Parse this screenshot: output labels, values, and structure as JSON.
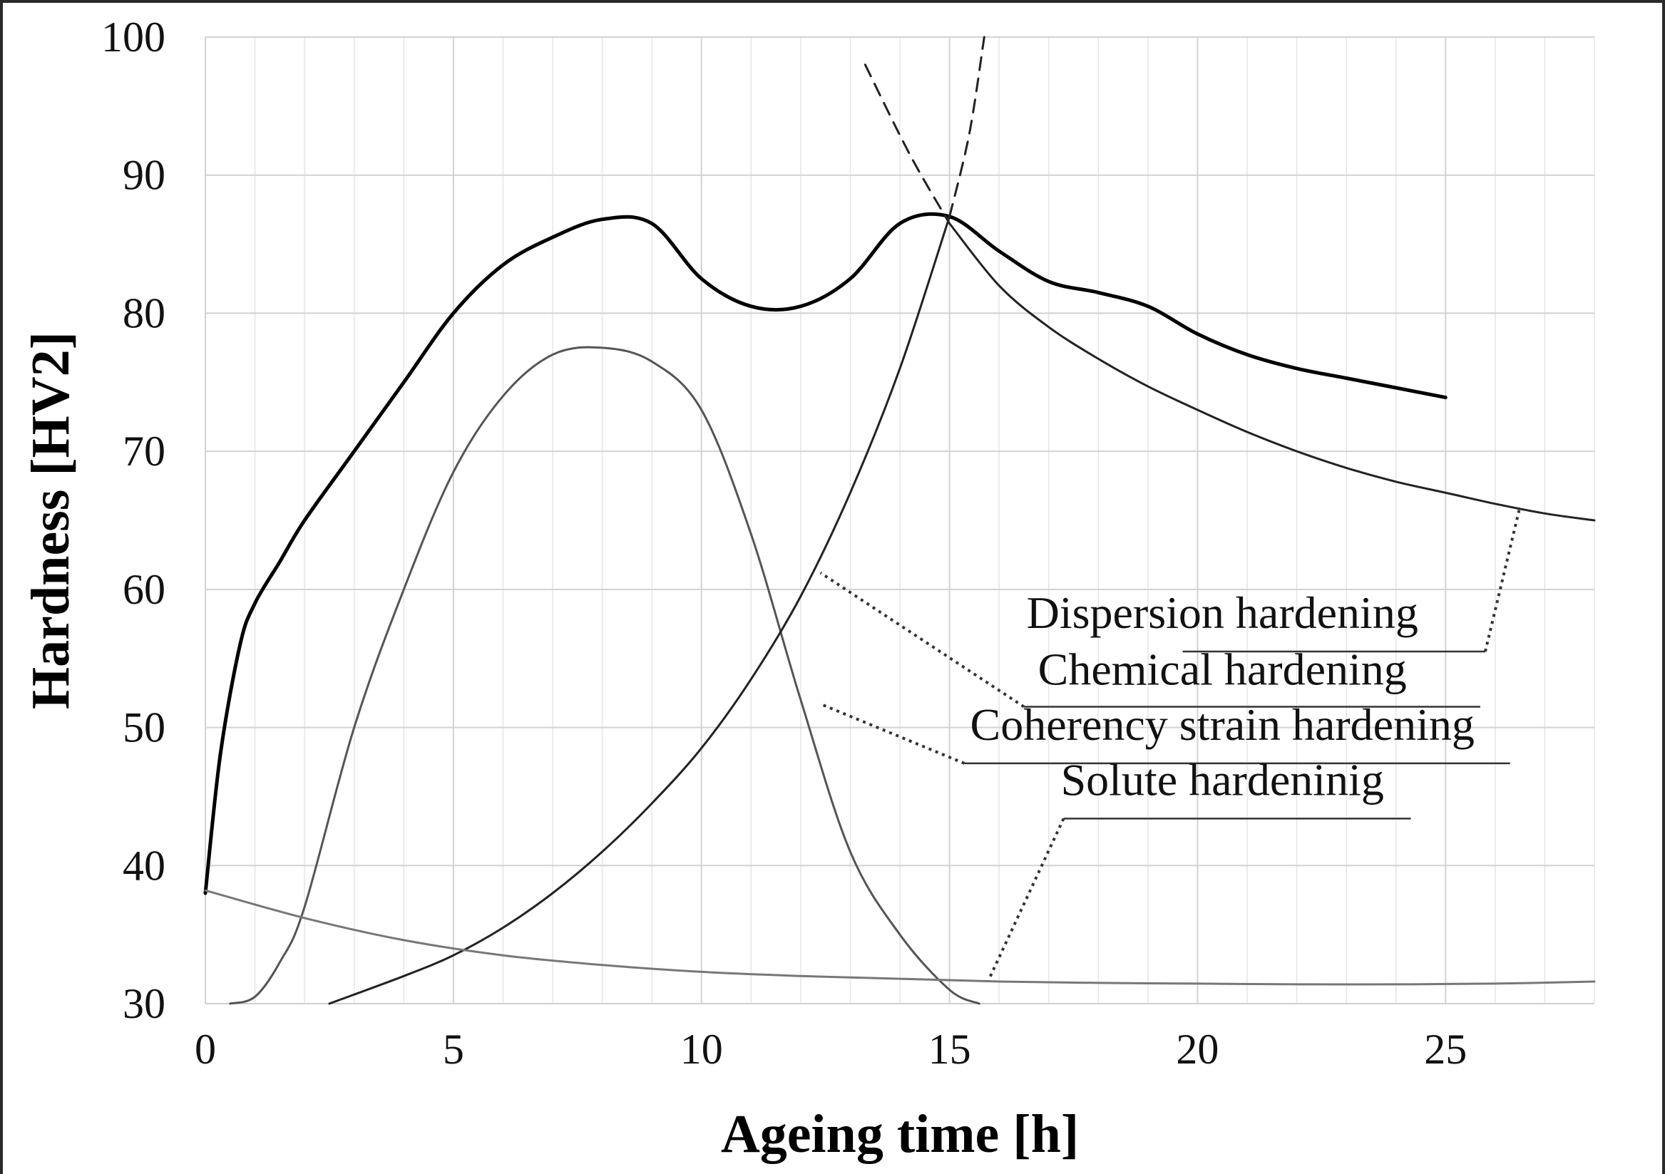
{
  "chart_data": {
    "type": "line",
    "xlabel": "Ageing time  [h]",
    "ylabel": "Hardness  [HV2]",
    "xlim": [
      0,
      28
    ],
    "ylim": [
      30,
      100
    ],
    "x_ticks": [
      0,
      5,
      10,
      15,
      20,
      25
    ],
    "y_ticks": [
      30,
      40,
      50,
      60,
      70,
      80,
      90,
      100
    ],
    "grid": true,
    "minor_grid": true,
    "series": [
      {
        "key": "total",
        "color": "#000000",
        "style": "solid-bold",
        "x": [
          0,
          0.3,
          0.7,
          1,
          1.5,
          2,
          3,
          4,
          5,
          6,
          7,
          8,
          9,
          10,
          11,
          12,
          13,
          14,
          15,
          16,
          17,
          18,
          19,
          20,
          21,
          22,
          23,
          24,
          25
        ],
        "y": [
          38,
          48,
          56,
          59,
          62,
          65,
          70,
          75,
          80,
          83.5,
          85.5,
          86.8,
          86.5,
          82.5,
          80.5,
          80.5,
          82.5,
          86.5,
          87,
          84.5,
          82.3,
          81.5,
          80.5,
          78.5,
          77,
          76,
          75.3,
          74.6,
          73.9
        ]
      },
      {
        "key": "coherency",
        "name": "Coherency  strain hardening",
        "color": "#555555",
        "style": "solid",
        "x": [
          0.5,
          1,
          1.5,
          2,
          3,
          4,
          5,
          6,
          7,
          8,
          9,
          10,
          11,
          12,
          13,
          14,
          15,
          15.6
        ],
        "y": [
          30,
          30.5,
          33,
          37,
          50,
          60,
          68.5,
          74,
          77,
          77.5,
          76.5,
          73,
          64,
          52,
          41,
          35,
          31,
          30
        ]
      },
      {
        "key": "chemical",
        "name": "Chemical hardening",
        "color": "#222222",
        "style": "solid",
        "x": [
          2.5,
          4,
          5,
          6,
          7,
          8,
          9,
          10,
          11,
          12,
          13,
          14,
          15
        ],
        "y": [
          30,
          32,
          33.5,
          35.5,
          38,
          41,
          44.5,
          48.5,
          53.5,
          59.5,
          67,
          76,
          87
        ]
      },
      {
        "key": "chemical_ext",
        "color": "#222222",
        "style": "dashed",
        "x": [
          15,
          15.4,
          15.7
        ],
        "y": [
          87,
          93,
          100
        ]
      },
      {
        "key": "dispersion",
        "name": "Dispersion hardening",
        "color": "#222222",
        "style": "solid",
        "x": [
          15,
          16,
          17,
          18,
          19,
          20,
          21,
          22,
          23,
          24,
          25,
          26,
          27,
          28
        ],
        "y": [
          86.5,
          82,
          79,
          76.7,
          74.7,
          73,
          71.4,
          70,
          68.8,
          67.8,
          67,
          66.2,
          65.5,
          65
        ]
      },
      {
        "key": "dispersion_ext",
        "color": "#222222",
        "style": "dashed",
        "x": [
          13.3,
          14.2,
          15
        ],
        "y": [
          98,
          91.5,
          86.5
        ]
      },
      {
        "key": "solute",
        "name": "Solute hardeninig",
        "color": "#777777",
        "style": "solid",
        "x": [
          0,
          2,
          4,
          6,
          8,
          10,
          12,
          14,
          16,
          18,
          20,
          22,
          24,
          26,
          28
        ],
        "y": [
          38.2,
          36.2,
          34.6,
          33.5,
          32.8,
          32.3,
          32,
          31.8,
          31.6,
          31.5,
          31.45,
          31.4,
          31.4,
          31.45,
          31.6
        ]
      }
    ],
    "annotations": [
      {
        "key": "dispersion",
        "text": "Dispersion hardening",
        "label_x": 20.5,
        "label_y": 57.2,
        "line_x": [
          19.7,
          25.8,
          26.5
        ],
        "line_y": [
          55.5,
          55.5,
          66
        ]
      },
      {
        "key": "chemical",
        "text": "Chemical hardening",
        "label_x": 20.5,
        "label_y": 53.1,
        "line_x": [
          25.7,
          16.5,
          12.4
        ],
        "line_y": [
          51.5,
          51.5,
          61.2
        ]
      },
      {
        "key": "coherency",
        "text": "Coherency  strain hardening",
        "label_x": 20.5,
        "label_y": 49.1,
        "line_x": [
          26.3,
          15.3,
          12.4
        ],
        "line_y": [
          47.4,
          47.4,
          51.7
        ]
      },
      {
        "key": "solute",
        "text": "Solute hardeninig",
        "label_x": 20.5,
        "label_y": 45.1,
        "line_x": [
          24.3,
          17.3,
          15.8
        ],
        "line_y": [
          43.4,
          43.4,
          31.8
        ]
      }
    ]
  }
}
